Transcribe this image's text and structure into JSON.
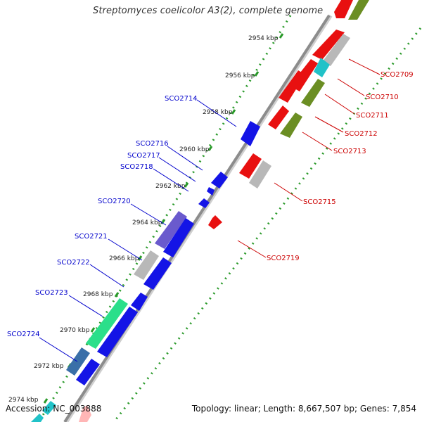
{
  "title": "Streptomyces coelicolor A3(2), complete genome",
  "footer": {
    "accession": "Accession: NC_003888",
    "summary": "Topology: linear; Length: 8,667,507 bp; Genes: 7,854"
  },
  "ruler": {
    "ticks": [
      "2954 kbp",
      "2956 kbp",
      "2958 kbp",
      "2960 kbp",
      "2962 kbp",
      "2964 kbp",
      "2966 kbp",
      "2968 kbp",
      "2970 kbp",
      "2972 kbp",
      "2974 kbp"
    ]
  },
  "colors": {
    "gene_label_forward": "#0000cc",
    "gene_label_reverse": "#cc0000",
    "backbone": "#8c8c8c",
    "dotted_track": "#2a9a2a",
    "tick_label": "#222222"
  },
  "genes_forward": [
    {
      "label": "SCO2714",
      "color": "#1414e6"
    },
    {
      "label": "SCO2716",
      "color": "#1414e6"
    },
    {
      "label": "SCO2717",
      "color": "#1414e6"
    },
    {
      "label": "SCO2718",
      "color": "#1414e6"
    },
    {
      "label": "SCO2720",
      "color": "#6a5acd"
    },
    {
      "label": "SCO2721",
      "color": "#b8b8b8"
    },
    {
      "label": "SCO2722",
      "color": "#1414e6"
    },
    {
      "label": "SCO2723",
      "color": "#2bdf8a"
    },
    {
      "label": "SCO2724",
      "color": "#3a6fa8"
    }
  ],
  "genes_reverse": [
    {
      "label": "SCO2709",
      "color": "#e81010"
    },
    {
      "label": "SCO2710",
      "color": "#21c2c8"
    },
    {
      "label": "SCO2711",
      "color": "#e81010"
    },
    {
      "label": "SCO2712",
      "color": "#6b8e23"
    },
    {
      "label": "SCO2713",
      "color": "#6b8e23"
    },
    {
      "label": "SCO2715",
      "color": "#b8b8b8"
    },
    {
      "label": "SCO2719",
      "color": "#e81010"
    }
  ]
}
